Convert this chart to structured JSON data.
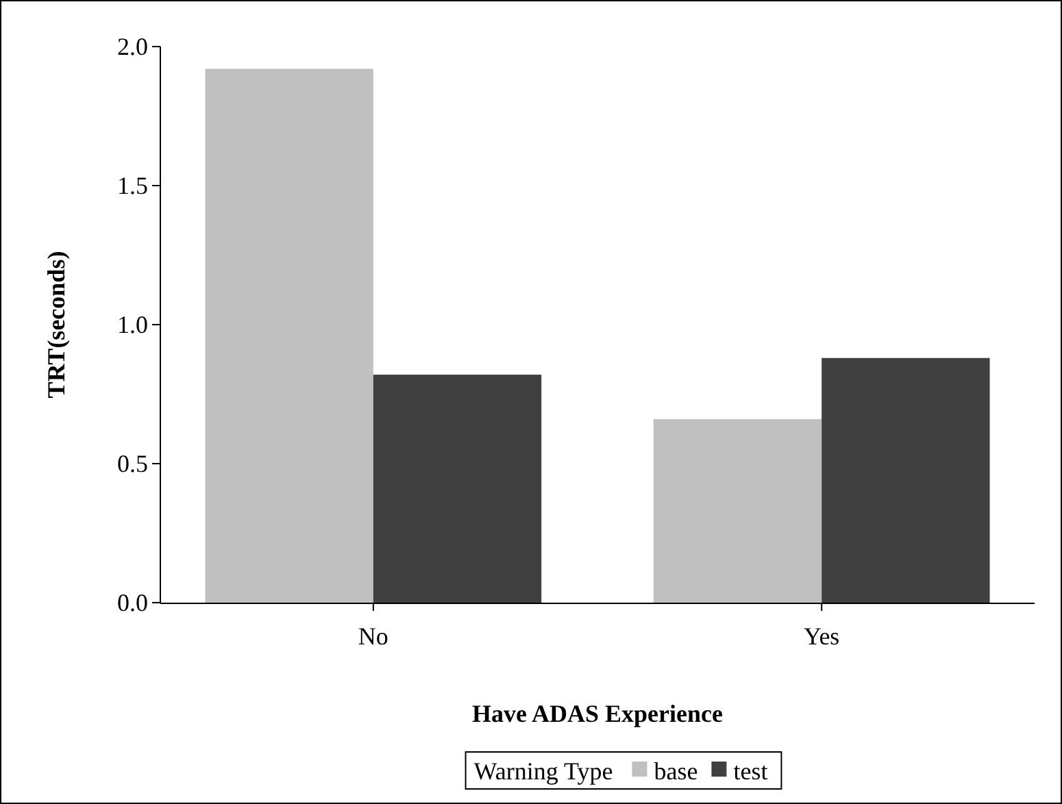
{
  "chart_data": {
    "type": "bar",
    "xlabel": "Have ADAS Experience",
    "ylabel": "TRT(seconds)",
    "legend_title": "Warning Type",
    "categories": [
      "No",
      "Yes"
    ],
    "series": [
      {
        "name": "base",
        "color": "#c0c0c0",
        "values": [
          1.92,
          0.66
        ]
      },
      {
        "name": "test",
        "color": "#404040",
        "values": [
          0.82,
          0.88
        ]
      }
    ],
    "ylim": [
      0,
      2.0
    ],
    "yticks": [
      {
        "value": 0,
        "label": "0.0"
      },
      {
        "value": 0.5,
        "label": "0.5"
      },
      {
        "value": 1,
        "label": "1.0"
      },
      {
        "value": 1.5,
        "label": "1.5"
      },
      {
        "value": 2,
        "label": "2.0"
      }
    ],
    "grid": false,
    "legend": "bottom"
  }
}
